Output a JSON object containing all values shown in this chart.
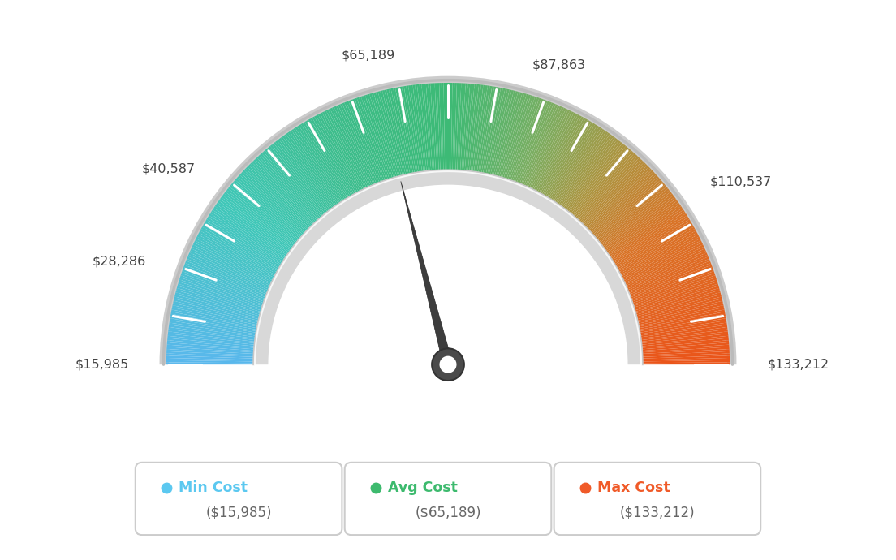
{
  "min_value": 15985,
  "max_value": 133212,
  "avg_value": 65189,
  "label_data": [
    [
      15985,
      "$15,985"
    ],
    [
      28286,
      "$28,286"
    ],
    [
      40587,
      "$40,587"
    ],
    [
      65189,
      "$65,189"
    ],
    [
      87863,
      "$87,863"
    ],
    [
      110537,
      "$110,537"
    ],
    [
      133212,
      "$133,212"
    ]
  ],
  "legend": [
    {
      "label": "Min Cost",
      "value": "($15,985)",
      "color": "#5bc8f0"
    },
    {
      "label": "Avg Cost",
      "value": "($65,189)",
      "color": "#3dba6e"
    },
    {
      "label": "Max Cost",
      "value": "($133,212)",
      "color": "#f05a28"
    }
  ],
  "color_stops": [
    [
      0.0,
      [
        0.35,
        0.72,
        0.93
      ]
    ],
    [
      0.2,
      [
        0.25,
        0.78,
        0.72
      ]
    ],
    [
      0.35,
      [
        0.24,
        0.74,
        0.55
      ]
    ],
    [
      0.5,
      [
        0.24,
        0.73,
        0.46
      ]
    ],
    [
      0.62,
      [
        0.48,
        0.68,
        0.38
      ]
    ],
    [
      0.72,
      [
        0.68,
        0.58,
        0.25
      ]
    ],
    [
      0.82,
      [
        0.85,
        0.45,
        0.15
      ]
    ],
    [
      1.0,
      [
        0.92,
        0.33,
        0.1
      ]
    ]
  ],
  "background_color": "#ffffff"
}
